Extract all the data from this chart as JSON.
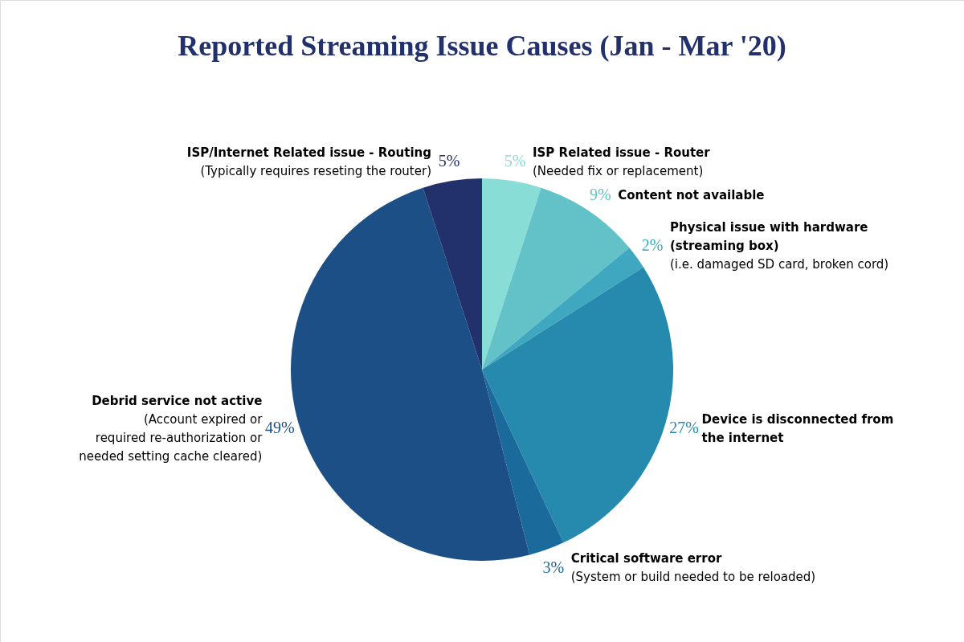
{
  "chart_data": {
    "type": "pie",
    "title": "Reported Streaming Issue Causes  (Jan - Mar '20)",
    "categories": [
      "ISP Related issue - Router",
      "Content not available",
      "Physical issue with hardware\n(streaming box)",
      "Device is disconnected from\nthe internet",
      "Critical software error",
      "Debrid service not active",
      "ISP/Internet Related issue - Routing"
    ],
    "values": [
      5,
      9,
      2,
      27,
      3,
      49,
      5
    ],
    "value_labels": [
      "5%",
      "9%",
      "2%",
      "27%",
      "3%",
      "49%",
      "5%"
    ],
    "colors": [
      "#88ddd6",
      "#62c2c8",
      "#3fa7bf",
      "#258aae",
      "#1b6a9c",
      "#1b4f86",
      "#22306b"
    ],
    "annotations": [
      {
        "text": "(Needed fix or replacement)",
        "x": "ISP Related issue - Router"
      },
      {
        "text": "(i.e. damaged SD card, broken cord)",
        "x": "Physical issue with hardware\n(streaming box)"
      },
      {
        "text": "(System or build needed to be reloaded)",
        "x": "Critical software error"
      },
      {
        "text": "(Account expired or\nrequired re-authorization or\nneeded setting cache cleared)",
        "x": "Debrid service not active"
      },
      {
        "text": "(Typically requires reseting the router)",
        "x": "ISP/Internet Related issue - Routing"
      }
    ]
  }
}
